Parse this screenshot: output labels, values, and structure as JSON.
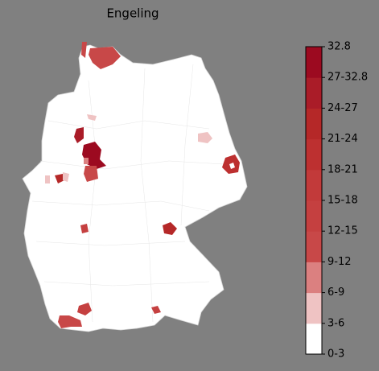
{
  "title": "Engeling",
  "colorbar": {
    "labels": [
      "0-3",
      "3-6",
      "6-9",
      "9-12",
      "12-15",
      "15-18",
      "18-21",
      "21-24",
      "24-27",
      "27-32.8",
      "32.8"
    ],
    "colors": [
      "#ffffff",
      "#efc3c3",
      "#db8080",
      "#c84848",
      "#c54040",
      "#c23a3a",
      "#bd3030",
      "#b52828",
      "#aa1c28",
      "#9c0a20"
    ]
  }
}
